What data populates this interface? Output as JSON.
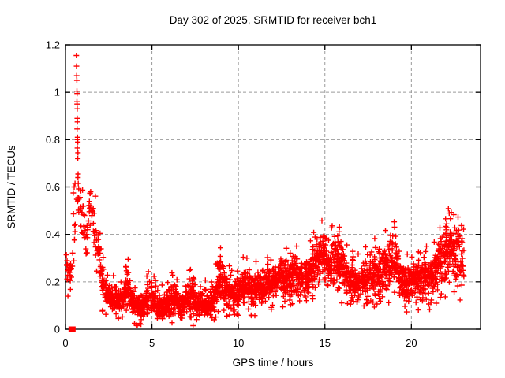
{
  "title": "Day 302 of 2025, SRMTID for receiver bch1",
  "axes": {
    "x": {
      "label": "GPS time / hours",
      "min": 0,
      "max": 24,
      "ticks": [
        {
          "v": 0,
          "label": "0"
        },
        {
          "v": 5,
          "label": "5"
        },
        {
          "v": 10,
          "label": "10"
        },
        {
          "v": 15,
          "label": "15"
        },
        {
          "v": 20,
          "label": "20"
        }
      ]
    },
    "y": {
      "label": "SRMTID / TECUs",
      "min": 0,
      "max": 1.2,
      "ticks": [
        {
          "v": 0,
          "label": "0"
        },
        {
          "v": 0.2,
          "label": "0.2"
        },
        {
          "v": 0.4,
          "label": "0.4"
        },
        {
          "v": 0.6,
          "label": "0.6"
        },
        {
          "v": 0.8,
          "label": "0.8"
        },
        {
          "v": 1,
          "label": "1"
        },
        {
          "v": 1.2,
          "label": "1.2"
        }
      ]
    }
  },
  "chart_data": {
    "type": "scatter",
    "title": "Day 302 of 2025, SRMTID for receiver bch1",
    "xlabel": "GPS time / hours",
    "ylabel": "SRMTID / TECUs",
    "xlim": [
      0,
      24
    ],
    "ylim": [
      0,
      1.2
    ],
    "grid": "dashed-major-both-axes",
    "legend": "none",
    "marker": "plus",
    "marker_size_px": 7,
    "point_color": "#ff0000",
    "grid_color": "#9a9a9a",
    "frame_color": "#000000",
    "square_marker": {
      "x": 0.38,
      "y": 0.0,
      "shape": "filled-square",
      "color": "#ff0000"
    },
    "spike_points": [
      [
        0.45,
        0.575
      ],
      [
        0.5,
        0.6
      ],
      [
        0.55,
        0.615
      ],
      [
        0.63,
        1.155
      ],
      [
        0.64,
        1.11
      ],
      [
        0.65,
        1.07
      ],
      [
        0.655,
        1.05
      ],
      [
        0.66,
        1.005
      ],
      [
        0.67,
        0.995
      ],
      [
        0.66,
        0.96
      ],
      [
        0.67,
        0.95
      ],
      [
        0.68,
        0.93
      ],
      [
        0.68,
        0.89
      ],
      [
        0.69,
        0.875
      ],
      [
        0.67,
        0.845
      ],
      [
        0.7,
        0.81
      ],
      [
        0.7,
        0.8
      ],
      [
        0.71,
        0.79
      ],
      [
        0.69,
        0.765
      ],
      [
        0.72,
        0.745
      ],
      [
        0.71,
        0.72
      ],
      [
        0.73,
        0.655
      ],
      [
        0.72,
        0.64
      ],
      [
        0.74,
        0.615
      ],
      [
        1.05,
        0.52
      ],
      [
        1.1,
        0.48
      ]
    ],
    "band_envelope": {
      "description": "Dense cloud of + markers; anchors are [hour, y_min, y_max, points_per_hour], linearly interpolated between anchors. Values in TECUs read from the plot.",
      "anchors": [
        [
          0.03,
          0.17,
          0.33,
          90
        ],
        [
          0.35,
          0.19,
          0.31,
          55
        ],
        [
          0.55,
          0.3,
          0.55,
          14
        ],
        [
          0.62,
          0.5,
          0.64,
          55
        ],
        [
          0.9,
          0.42,
          0.62,
          55
        ],
        [
          1.1,
          0.3,
          0.5,
          50
        ],
        [
          1.25,
          0.3,
          0.45,
          45
        ],
        [
          1.4,
          0.45,
          0.62,
          60
        ],
        [
          1.6,
          0.4,
          0.6,
          60
        ],
        [
          1.75,
          0.3,
          0.5,
          70
        ],
        [
          1.95,
          0.22,
          0.4,
          85
        ],
        [
          2.1,
          0.12,
          0.3,
          100
        ],
        [
          2.4,
          0.08,
          0.21,
          130
        ],
        [
          2.7,
          0.06,
          0.18,
          130
        ],
        [
          3.0,
          0.08,
          0.2,
          130
        ],
        [
          3.3,
          0.07,
          0.17,
          130
        ],
        [
          3.6,
          0.1,
          0.285,
          130
        ],
        [
          3.8,
          0.07,
          0.17,
          130
        ],
        [
          4.2,
          0.035,
          0.14,
          130
        ],
        [
          4.6,
          0.05,
          0.16,
          130
        ],
        [
          4.85,
          0.07,
          0.21,
          130
        ],
        [
          5.15,
          0.05,
          0.17,
          130
        ],
        [
          5.5,
          0.03,
          0.13,
          130
        ],
        [
          5.9,
          0.05,
          0.17,
          130
        ],
        [
          6.3,
          0.06,
          0.22,
          130
        ],
        [
          6.7,
          0.04,
          0.15,
          130
        ],
        [
          7.1,
          0.06,
          0.23,
          130
        ],
        [
          7.5,
          0.05,
          0.18,
          130
        ],
        [
          7.9,
          0.04,
          0.16,
          130
        ],
        [
          8.3,
          0.04,
          0.16,
          130
        ],
        [
          8.6,
          0.06,
          0.2,
          130
        ],
        [
          8.8,
          0.11,
          0.3,
          130
        ],
        [
          9.05,
          0.12,
          0.3,
          130
        ],
        [
          9.3,
          0.09,
          0.26,
          130
        ],
        [
          9.6,
          0.08,
          0.21,
          130
        ],
        [
          10.0,
          0.09,
          0.22,
          130
        ],
        [
          10.4,
          0.11,
          0.27,
          130
        ],
        [
          10.8,
          0.09,
          0.23,
          130
        ],
        [
          11.2,
          0.1,
          0.26,
          130
        ],
        [
          11.6,
          0.11,
          0.26,
          130
        ],
        [
          12.0,
          0.12,
          0.28,
          130
        ],
        [
          12.5,
          0.13,
          0.32,
          130
        ],
        [
          12.9,
          0.12,
          0.3,
          130
        ],
        [
          13.3,
          0.14,
          0.33,
          130
        ],
        [
          13.7,
          0.12,
          0.29,
          130
        ],
        [
          14.1,
          0.14,
          0.33,
          130
        ],
        [
          14.5,
          0.16,
          0.4,
          130
        ],
        [
          14.9,
          0.17,
          0.46,
          130
        ],
        [
          15.2,
          0.14,
          0.36,
          130
        ],
        [
          15.6,
          0.17,
          0.46,
          130
        ],
        [
          15.95,
          0.15,
          0.4,
          130
        ],
        [
          16.3,
          0.12,
          0.31,
          130
        ],
        [
          16.7,
          0.1,
          0.27,
          130
        ],
        [
          17.1,
          0.12,
          0.29,
          130
        ],
        [
          17.5,
          0.13,
          0.33,
          130
        ],
        [
          17.9,
          0.12,
          0.34,
          130
        ],
        [
          18.3,
          0.14,
          0.36,
          130
        ],
        [
          18.7,
          0.15,
          0.4,
          130
        ],
        [
          19.0,
          0.15,
          0.43,
          130
        ],
        [
          19.3,
          0.12,
          0.31,
          130
        ],
        [
          19.7,
          0.1,
          0.27,
          130
        ],
        [
          20.1,
          0.12,
          0.29,
          130
        ],
        [
          20.6,
          0.11,
          0.3,
          130
        ],
        [
          21.0,
          0.12,
          0.31,
          130
        ],
        [
          21.4,
          0.14,
          0.35,
          130
        ],
        [
          21.8,
          0.16,
          0.42,
          130
        ],
        [
          22.2,
          0.2,
          0.5,
          130
        ],
        [
          22.5,
          0.18,
          0.46,
          120
        ],
        [
          22.8,
          0.13,
          0.42,
          110
        ],
        [
          23.05,
          0.15,
          0.38,
          90
        ]
      ]
    },
    "seed": 1302
  }
}
